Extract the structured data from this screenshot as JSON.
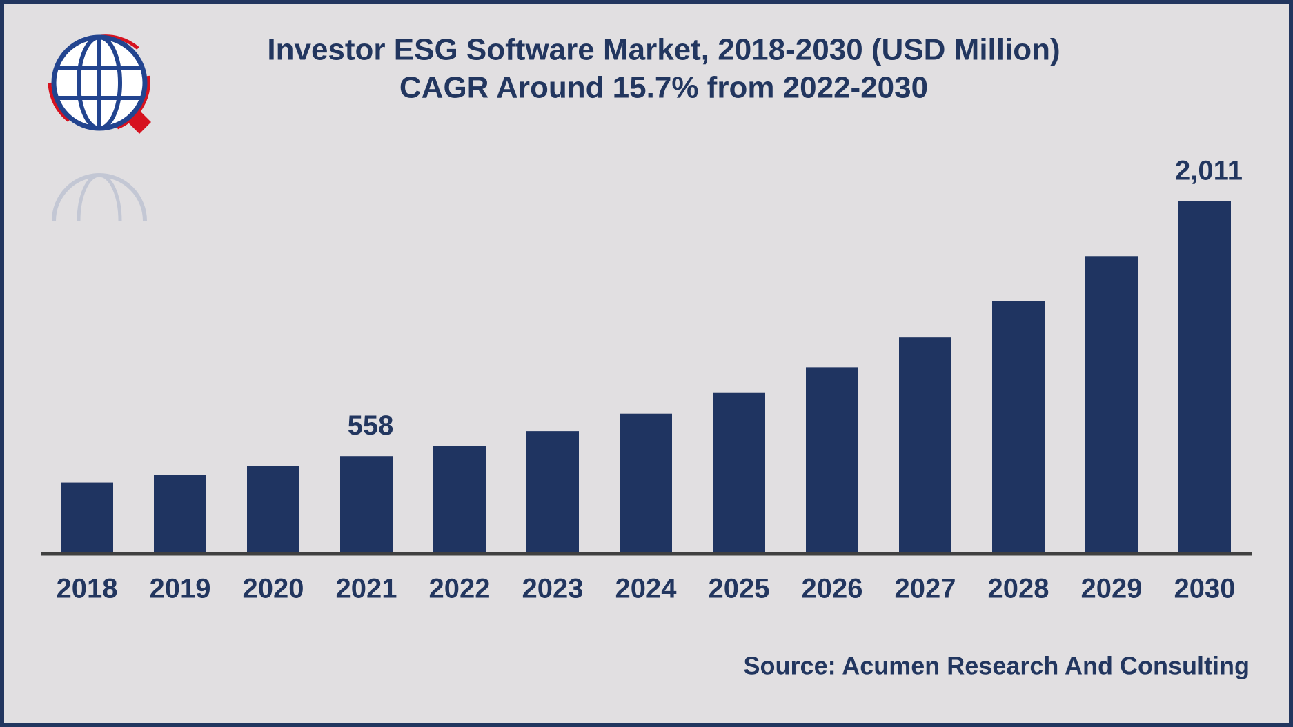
{
  "chart_data": {
    "type": "bar",
    "title": "Investor ESG Software Market, 2018-2030 (USD Million)",
    "subtitle": "CAGR Around 15.7% from 2022-2030",
    "source": "Source: Acumen Research And Consulting",
    "categories": [
      "2018",
      "2019",
      "2020",
      "2021",
      "2022",
      "2023",
      "2024",
      "2025",
      "2026",
      "2027",
      "2028",
      "2029",
      "2030"
    ],
    "values": [
      407,
      450,
      502,
      558,
      615,
      700,
      800,
      918,
      1065,
      1235,
      1443,
      1699,
      2011
    ],
    "value_labels": [
      null,
      null,
      null,
      "558",
      null,
      null,
      null,
      null,
      null,
      null,
      null,
      null,
      "2,011"
    ],
    "color": "#1f3461"
  }
}
